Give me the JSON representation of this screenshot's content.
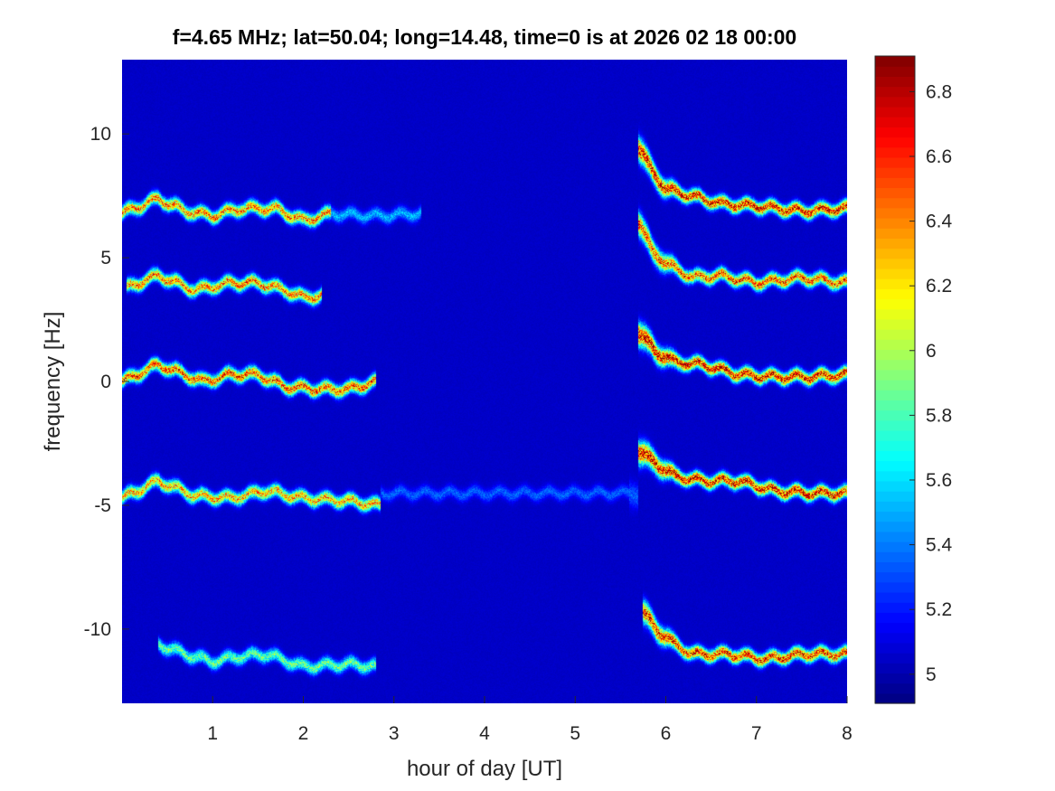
{
  "chart_data": {
    "type": "heatmap",
    "title": "f=4.65 MHz;  lat=50.04; long=14.48, time=0 is at 2026 02 18 00:00",
    "xlabel": "hour of day [UT]",
    "ylabel": "frequency [Hz]",
    "xlim": [
      0,
      8
    ],
    "ylim": [
      -13,
      13
    ],
    "xticks": [
      1,
      2,
      3,
      4,
      5,
      6,
      7,
      8
    ],
    "xtick_labels": [
      "1",
      "2",
      "3",
      "4",
      "5",
      "6",
      "7",
      "8"
    ],
    "yticks": [
      10,
      5,
      0,
      -5,
      -10
    ],
    "ytick_labels": [
      "10",
      "5",
      "0",
      "-5",
      "-10"
    ],
    "colormap": "jet",
    "clim": [
      4.91,
      6.91
    ],
    "colorbar_ticks": [
      6.8,
      6.6,
      6.4,
      6.2,
      6,
      5.8,
      5.6,
      5.4,
      5.2,
      5
    ],
    "colorbar_tick_labels": [
      "6.8",
      "6.6",
      "6.4",
      "6.2",
      "6",
      "5.8",
      "5.6",
      "5.4",
      "5.2",
      "5"
    ],
    "background_value": 5.05,
    "ridges": [
      {
        "peak": 6.6,
        "points": [
          [
            0,
            6.8
          ],
          [
            0.4,
            7.4
          ],
          [
            0.7,
            6.9
          ],
          [
            1.0,
            6.7
          ],
          [
            1.3,
            7.0
          ],
          [
            1.7,
            7.0
          ],
          [
            2.0,
            6.5
          ],
          [
            2.3,
            6.8
          ]
        ]
      },
      {
        "peak": 5.6,
        "points": [
          [
            2.3,
            6.8
          ],
          [
            2.8,
            6.7
          ],
          [
            3.3,
            6.8
          ]
        ]
      },
      {
        "peak": 6.6,
        "points": [
          [
            0.05,
            3.8
          ],
          [
            0.4,
            4.3
          ],
          [
            0.8,
            3.7
          ],
          [
            1.2,
            4.0
          ],
          [
            1.5,
            4.0
          ],
          [
            1.8,
            3.7
          ],
          [
            2.0,
            3.4
          ],
          [
            2.2,
            3.5
          ]
        ]
      },
      {
        "peak": 6.7,
        "points": [
          [
            0,
            0
          ],
          [
            0.4,
            0.7
          ],
          [
            0.9,
            0
          ],
          [
            1.2,
            0.3
          ],
          [
            1.5,
            0.3
          ],
          [
            1.8,
            -0.2
          ],
          [
            2.2,
            -0.3
          ],
          [
            2.5,
            -0.3
          ],
          [
            2.8,
            0
          ]
        ]
      },
      {
        "peak": 6.5,
        "points": [
          [
            0,
            -4.7
          ],
          [
            0.4,
            -4.0
          ],
          [
            0.8,
            -4.6
          ],
          [
            1.2,
            -4.7
          ],
          [
            1.6,
            -4.4
          ],
          [
            2.0,
            -4.7
          ],
          [
            2.5,
            -4.8
          ],
          [
            2.85,
            -5.0
          ]
        ]
      },
      {
        "peak": 5.4,
        "points": [
          [
            2.85,
            -4.5
          ],
          [
            4.0,
            -4.5
          ],
          [
            5.7,
            -4.5
          ]
        ]
      },
      {
        "peak": 6.0,
        "points": [
          [
            0.4,
            -10.6
          ],
          [
            0.7,
            -11.0
          ],
          [
            1.0,
            -11.3
          ],
          [
            1.3,
            -11.1
          ],
          [
            1.6,
            -11.0
          ],
          [
            2.0,
            -11.5
          ],
          [
            2.5,
            -11.4
          ],
          [
            2.8,
            -11.5
          ]
        ]
      },
      {
        "peak": 6.9,
        "points": [
          [
            5.7,
            9.5
          ],
          [
            5.85,
            8.5
          ],
          [
            6.0,
            7.8
          ],
          [
            6.3,
            7.5
          ],
          [
            6.6,
            7.2
          ],
          [
            7.0,
            7.1
          ],
          [
            7.5,
            6.9
          ],
          [
            8,
            7.0
          ]
        ]
      },
      {
        "peak": 6.7,
        "points": [
          [
            5.7,
            6.5
          ],
          [
            5.85,
            5.3
          ],
          [
            6.0,
            4.8
          ],
          [
            6.3,
            4.2
          ],
          [
            6.6,
            4.3
          ],
          [
            7.0,
            4.0
          ],
          [
            7.5,
            4.2
          ],
          [
            8,
            4.0
          ]
        ]
      },
      {
        "peak": 6.9,
        "points": [
          [
            5.7,
            2.0
          ],
          [
            5.9,
            1.2
          ],
          [
            6.1,
            0.8
          ],
          [
            6.4,
            0.7
          ],
          [
            6.8,
            0.3
          ],
          [
            7.2,
            0.2
          ],
          [
            7.6,
            0.2
          ],
          [
            8,
            0.3
          ]
        ]
      },
      {
        "peak": 6.9,
        "points": [
          [
            5.7,
            -2.8
          ],
          [
            5.9,
            -3.3
          ],
          [
            6.1,
            -3.8
          ],
          [
            6.4,
            -4.0
          ],
          [
            6.8,
            -4.0
          ],
          [
            7.2,
            -4.4
          ],
          [
            7.6,
            -4.5
          ],
          [
            8,
            -4.5
          ]
        ]
      },
      {
        "peak": 6.8,
        "points": [
          [
            5.75,
            -9.3
          ],
          [
            5.9,
            -10.0
          ],
          [
            6.1,
            -10.6
          ],
          [
            6.3,
            -11.0
          ],
          [
            6.7,
            -11.0
          ],
          [
            7.1,
            -11.2
          ],
          [
            7.5,
            -11.0
          ],
          [
            8,
            -11.0
          ]
        ]
      }
    ]
  }
}
